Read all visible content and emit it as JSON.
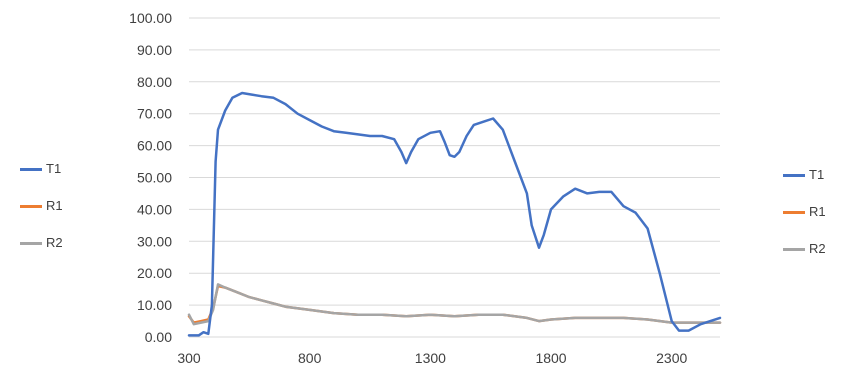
{
  "chart_data": {
    "type": "line",
    "title": "",
    "xlabel": "",
    "ylabel": "",
    "xlim": [
      300,
      2500
    ],
    "ylim": [
      0,
      100
    ],
    "x_ticks": [
      "300",
      "800",
      "1300",
      "1800",
      "2300"
    ],
    "y_ticks": [
      "0.00",
      "10.00",
      "20.00",
      "30.00",
      "40.00",
      "50.00",
      "60.00",
      "70.00",
      "80.00",
      "90.00",
      "100.00"
    ],
    "grid": true,
    "legend_placement": "left and right",
    "series": [
      {
        "name": "T1",
        "color": "#4472C4",
        "points": [
          [
            300,
            0.5
          ],
          [
            340,
            0.5
          ],
          [
            360,
            1.5
          ],
          [
            380,
            1
          ],
          [
            395,
            10
          ],
          [
            410,
            55
          ],
          [
            420,
            65
          ],
          [
            450,
            71
          ],
          [
            480,
            75
          ],
          [
            520,
            76.5
          ],
          [
            560,
            76
          ],
          [
            600,
            75.5
          ],
          [
            650,
            75
          ],
          [
            700,
            73
          ],
          [
            750,
            70
          ],
          [
            800,
            68
          ],
          [
            850,
            66
          ],
          [
            900,
            64.5
          ],
          [
            950,
            64
          ],
          [
            1000,
            63.5
          ],
          [
            1050,
            63
          ],
          [
            1100,
            63
          ],
          [
            1150,
            62
          ],
          [
            1180,
            58
          ],
          [
            1200,
            54.5
          ],
          [
            1220,
            58
          ],
          [
            1250,
            62
          ],
          [
            1300,
            64
          ],
          [
            1340,
            64.5
          ],
          [
            1360,
            61
          ],
          [
            1380,
            57
          ],
          [
            1400,
            56.5
          ],
          [
            1420,
            58
          ],
          [
            1450,
            63
          ],
          [
            1480,
            66.5
          ],
          [
            1520,
            67.5
          ],
          [
            1560,
            68.5
          ],
          [
            1600,
            65
          ],
          [
            1650,
            55
          ],
          [
            1700,
            45
          ],
          [
            1720,
            35
          ],
          [
            1750,
            28
          ],
          [
            1770,
            32
          ],
          [
            1800,
            40
          ],
          [
            1850,
            44
          ],
          [
            1900,
            46.5
          ],
          [
            1950,
            45
          ],
          [
            2000,
            45.5
          ],
          [
            2050,
            45.5
          ],
          [
            2100,
            41
          ],
          [
            2150,
            39
          ],
          [
            2200,
            34
          ],
          [
            2250,
            20
          ],
          [
            2300,
            5
          ],
          [
            2330,
            2
          ],
          [
            2370,
            2
          ],
          [
            2420,
            4
          ],
          [
            2500,
            6
          ]
        ]
      },
      {
        "name": "R1",
        "color": "#ED7D31",
        "points": [
          [
            300,
            6.5
          ],
          [
            320,
            4.5
          ],
          [
            350,
            5
          ],
          [
            380,
            5.5
          ],
          [
            400,
            9
          ],
          [
            420,
            16
          ],
          [
            450,
            15.5
          ],
          [
            500,
            14
          ],
          [
            550,
            12.5
          ],
          [
            600,
            11.5
          ],
          [
            650,
            10.5
          ],
          [
            700,
            9.5
          ],
          [
            800,
            8.5
          ],
          [
            900,
            7.5
          ],
          [
            1000,
            7
          ],
          [
            1100,
            7
          ],
          [
            1200,
            6.5
          ],
          [
            1300,
            7
          ],
          [
            1400,
            6.5
          ],
          [
            1500,
            7
          ],
          [
            1600,
            7
          ],
          [
            1700,
            6
          ],
          [
            1750,
            5
          ],
          [
            1800,
            5.5
          ],
          [
            1900,
            6
          ],
          [
            2000,
            6
          ],
          [
            2100,
            6
          ],
          [
            2200,
            5.5
          ],
          [
            2300,
            4.5
          ],
          [
            2400,
            4.5
          ],
          [
            2500,
            4.5
          ]
        ]
      },
      {
        "name": "R2",
        "color": "#A5A5A5",
        "points": [
          [
            300,
            7
          ],
          [
            320,
            4
          ],
          [
            350,
            4.5
          ],
          [
            380,
            5
          ],
          [
            400,
            8.5
          ],
          [
            420,
            16.5
          ],
          [
            450,
            15.5
          ],
          [
            500,
            14
          ],
          [
            550,
            12.5
          ],
          [
            600,
            11.5
          ],
          [
            650,
            10.5
          ],
          [
            700,
            9.5
          ],
          [
            800,
            8.5
          ],
          [
            900,
            7.5
          ],
          [
            1000,
            7
          ],
          [
            1100,
            7
          ],
          [
            1200,
            6.5
          ],
          [
            1300,
            7
          ],
          [
            1400,
            6.5
          ],
          [
            1500,
            7
          ],
          [
            1600,
            7
          ],
          [
            1700,
            6
          ],
          [
            1750,
            5
          ],
          [
            1800,
            5.5
          ],
          [
            1900,
            6
          ],
          [
            2000,
            6
          ],
          [
            2100,
            6
          ],
          [
            2200,
            5.5
          ],
          [
            2300,
            4.5
          ],
          [
            2400,
            4.5
          ],
          [
            2500,
            4.5
          ]
        ]
      }
    ]
  },
  "legends": {
    "left": [
      "T1",
      "R1",
      "R2"
    ],
    "right": [
      "T1",
      "R1",
      "R2"
    ]
  }
}
